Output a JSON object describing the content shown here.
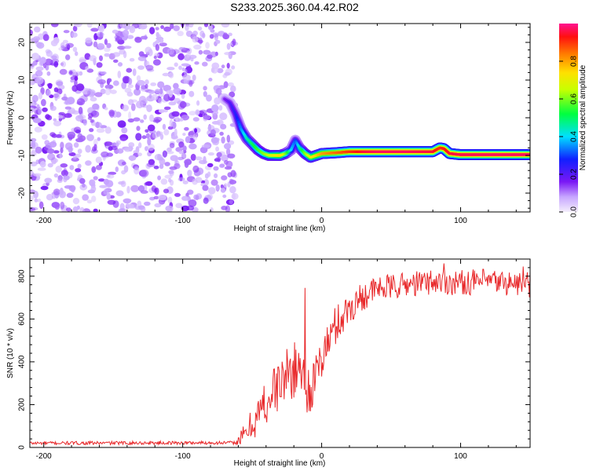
{
  "title": "S233.2025.360.04.42.R02",
  "chart_data": [
    {
      "type": "heatmap",
      "xlabel": "Height of straight line (km)",
      "ylabel": "Frequency (Hz)",
      "xlim": [
        -210,
        150
      ],
      "ylim": [
        -25,
        25
      ],
      "x_ticks": [
        -200,
        -100,
        0,
        100
      ],
      "y_ticks": [
        -20,
        -10,
        0,
        10,
        20
      ],
      "noise_region_x": [
        -210,
        -62
      ],
      "colorbar": {
        "label": "Normalized spectral amplitude",
        "range": [
          0,
          1
        ],
        "ticks": [
          "0.0",
          "0.2",
          "0.4",
          "0.6",
          "0.8"
        ]
      },
      "ridge": {
        "x": [
          -70,
          -66,
          -62,
          -58,
          -54,
          -50,
          -46,
          -42,
          -38,
          -34,
          -30,
          -26,
          -22,
          -19,
          -16,
          -12,
          -8,
          -4,
          0,
          10,
          20,
          30,
          40,
          50,
          60,
          70,
          80,
          85,
          88,
          92,
          100,
          120,
          150
        ],
        "y": [
          5,
          4,
          1,
          -3,
          -5.5,
          -7,
          -8.5,
          -9.5,
          -10,
          -10,
          -10,
          -9.5,
          -8.5,
          -6,
          -8,
          -9.5,
          -10.5,
          -10,
          -9.5,
          -9.3,
          -9,
          -9,
          -9,
          -9,
          -9,
          -9,
          -9,
          -8,
          -8.2,
          -9.5,
          -9.8,
          -9.8,
          -9.8
        ],
        "amplitude": [
          0.15,
          0.2,
          0.25,
          0.35,
          0.45,
          0.5,
          0.55,
          0.6,
          0.65,
          0.7,
          0.75,
          0.6,
          0.4,
          0.3,
          0.45,
          0.6,
          0.7,
          0.75,
          0.8,
          0.85,
          0.9,
          0.95,
          0.97,
          0.97,
          0.97,
          0.96,
          0.95,
          0.9,
          0.92,
          0.95,
          0.96,
          0.97,
          0.97
        ]
      }
    },
    {
      "type": "line",
      "xlabel": "Height of straight line (km)",
      "ylabel": "SNR (10 * v/v)",
      "xlim": [
        -210,
        150
      ],
      "ylim": [
        0,
        880
      ],
      "x_ticks": [
        -200,
        -100,
        0,
        100
      ],
      "y_ticks": [
        0,
        200,
        400,
        600,
        800
      ],
      "color": "#e8282a",
      "trend": {
        "x": [
          -210,
          -62,
          -55,
          -45,
          -35,
          -25,
          -15,
          -10,
          -5,
          0,
          10,
          20,
          30,
          40,
          60,
          80,
          100,
          120,
          150
        ],
        "y": [
          20,
          22,
          60,
          160,
          260,
          340,
          380,
          270,
          300,
          420,
          570,
          650,
          710,
          740,
          760,
          775,
          770,
          775,
          760
        ]
      },
      "noise_amplitude": {
        "x": [
          -210,
          -62,
          -55,
          -40,
          -20,
          0,
          20,
          40,
          150
        ],
        "y": [
          8,
          8,
          60,
          120,
          130,
          110,
          80,
          60,
          60
        ]
      },
      "spikes": [
        {
          "x": -12,
          "y": 745
        },
        {
          "x": -9,
          "y": 170
        },
        {
          "x": 88,
          "y": 860
        },
        {
          "x": 145,
          "y": 845
        }
      ]
    }
  ]
}
